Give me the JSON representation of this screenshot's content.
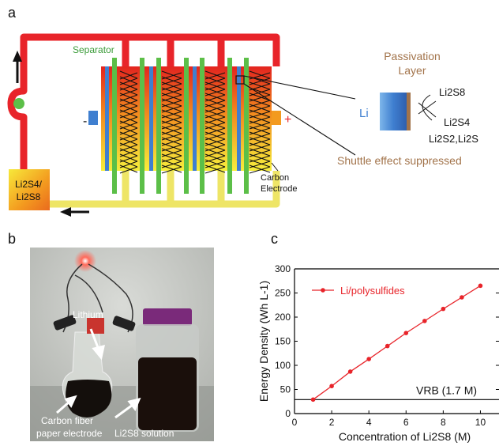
{
  "panel_a": {
    "letter": "a",
    "separator_label": "Separator",
    "minus_sign": "-",
    "plus_sign": "+",
    "tank_label_line1": "Li2S4/",
    "tank_label_line2": "Li2S8",
    "carbon_label_line1": "Carbon",
    "carbon_label_line2": "Electrode",
    "passivation_line1": "Passivation",
    "passivation_line2": "Layer",
    "li_label": "Li",
    "species_top": "Li2S8",
    "species_mid": "Li2S4",
    "species_bot": "Li2S2,Li2S",
    "shuttle_text": "Shuttle effect suppressed",
    "colors": {
      "flow_line": "#e8242a",
      "return_line": "#eee566",
      "separator": "#5cbf48",
      "li_electrode": "#3f7fd0",
      "passivation": "#a2734a"
    }
  },
  "panel_b": {
    "letter": "b",
    "lithium_label": "Lithium",
    "carbon_fiber_line1": "Carbon fiber",
    "carbon_fiber_line2": "paper electrode",
    "solution_label": "Li2S8 solution"
  },
  "panel_c": {
    "letter": "c",
    "reference_label": "VRB (1.7 M)",
    "chart_data": {
      "type": "line",
      "xlabel": "Concentration of Li2S8 (M)",
      "ylabel": "Energy Density (Wh L-1)",
      "xlim": [
        0,
        11
      ],
      "ylim": [
        0,
        300
      ],
      "xticks": [
        0,
        2,
        4,
        6,
        8,
        10
      ],
      "yticks": [
        0,
        50,
        100,
        150,
        200,
        250,
        300
      ],
      "legend_position": "top-left",
      "series": [
        {
          "name": "Li/polysulfides",
          "color": "#e8242a",
          "x": [
            1,
            2,
            3,
            4,
            5,
            6,
            7,
            8,
            9,
            10
          ],
          "y": [
            29,
            57,
            87,
            113,
            140,
            167,
            192,
            217,
            241,
            265
          ]
        }
      ],
      "reference_line": {
        "y": 29,
        "label": "VRB (1.7 M)",
        "color": "#000000"
      }
    }
  }
}
